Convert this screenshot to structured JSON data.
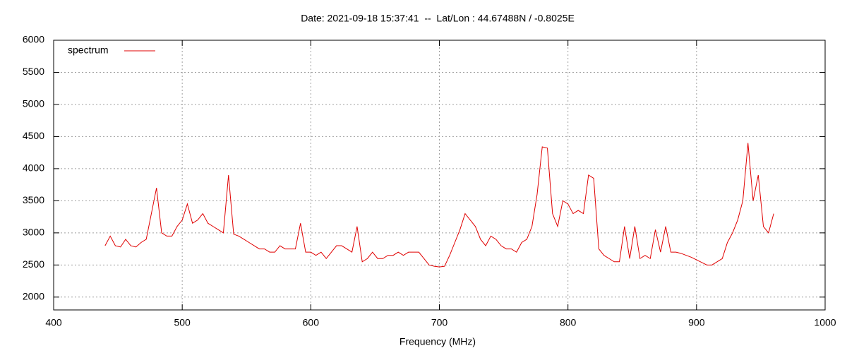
{
  "chart_data": {
    "type": "line",
    "title": "Date: 2021-09-18 15:37:41  --  Lat/Lon : 44.67488N / -0.8025E",
    "x_label": "Frequency (MHz)",
    "xlim": [
      400,
      1000
    ],
    "xticks": [
      400,
      500,
      600,
      700,
      800,
      900,
      1000
    ],
    "ylim": [
      1800,
      6000
    ],
    "yticks": [
      2000,
      2500,
      3000,
      3500,
      4000,
      4500,
      5000,
      5500,
      6000
    ],
    "grid": true,
    "legend": "top-left",
    "x": [
      440,
      444,
      448,
      452,
      456,
      460,
      464,
      468,
      472,
      476,
      480,
      484,
      488,
      492,
      496,
      500,
      504,
      508,
      512,
      516,
      520,
      524,
      528,
      532,
      536,
      540,
      544,
      548,
      552,
      556,
      560,
      564,
      568,
      572,
      576,
      580,
      584,
      588,
      592,
      596,
      600,
      604,
      608,
      612,
      616,
      620,
      624,
      628,
      632,
      636,
      640,
      644,
      648,
      652,
      656,
      660,
      664,
      668,
      672,
      676,
      680,
      684,
      688,
      692,
      696,
      700,
      704,
      708,
      712,
      716,
      720,
      724,
      728,
      732,
      736,
      740,
      744,
      748,
      752,
      756,
      760,
      764,
      768,
      772,
      776,
      780,
      784,
      788,
      792,
      796,
      800,
      804,
      808,
      812,
      816,
      820,
      824,
      828,
      832,
      836,
      840,
      844,
      848,
      852,
      856,
      860,
      864,
      868,
      872,
      876,
      880,
      884,
      888,
      892,
      896,
      900,
      904,
      908,
      912,
      916,
      920,
      924,
      928,
      932,
      936,
      940,
      944,
      948,
      952,
      956,
      960
    ],
    "series": [
      {
        "name": "spectrum",
        "color": "#e00000",
        "values": [
          2800,
          2950,
          2800,
          2780,
          2900,
          2800,
          2780,
          2850,
          2900,
          3300,
          3700,
          3000,
          2950,
          2950,
          3100,
          3200,
          3450,
          3150,
          3200,
          3300,
          3150,
          3100,
          3050,
          3000,
          3900,
          2980,
          2950,
          2900,
          2850,
          2800,
          2750,
          2750,
          2700,
          2700,
          2800,
          2750,
          2750,
          2750,
          3150,
          2700,
          2700,
          2650,
          2700,
          2600,
          2700,
          2800,
          2800,
          2750,
          2700,
          3100,
          2550,
          2600,
          2700,
          2600,
          2600,
          2650,
          2650,
          2700,
          2650,
          2700,
          2700,
          2700,
          2600,
          2500,
          2480,
          2470,
          2480,
          2650,
          2850,
          3050,
          3300,
          3200,
          3100,
          2900,
          2800,
          2950,
          2900,
          2800,
          2750,
          2750,
          2700,
          2850,
          2900,
          3100,
          3600,
          4340,
          4320,
          3300,
          3100,
          3500,
          3450,
          3300,
          3350,
          3300,
          3900,
          3850,
          2750,
          2650,
          2600,
          2550,
          2550,
          3100,
          2600,
          3100,
          2600,
          2650,
          2600,
          3050,
          2700,
          3100,
          2700,
          2700,
          2680,
          2650,
          2620,
          2580,
          2540,
          2500,
          2500,
          2550,
          2600,
          2850,
          3000,
          3200,
          3500,
          4400,
          3500,
          3900,
          3100,
          3000,
          3300
        ]
      }
    ]
  }
}
